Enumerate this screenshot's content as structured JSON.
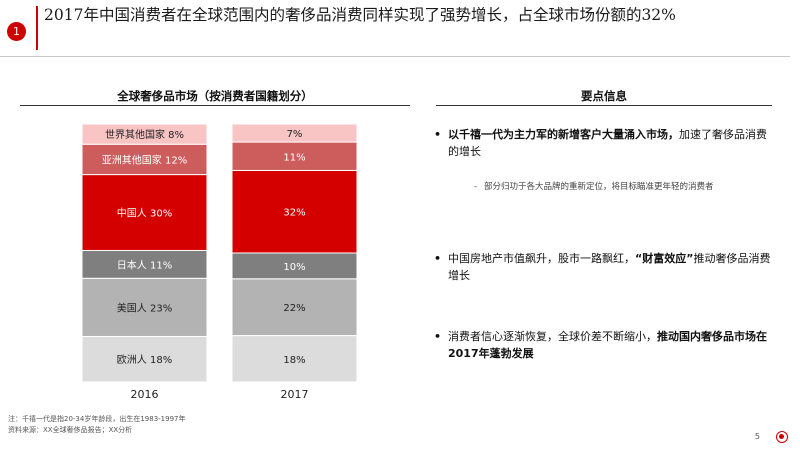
{
  "slide": {
    "badge": "1",
    "title": "2017年中国消费者在全球范围内的奢侈品消费同样实现了强势增长，占全球市场份额的32%",
    "page_number": "5"
  },
  "left_panel": {
    "heading": "全球奢侈品市场（按消费者国籍划分）"
  },
  "right_panel": {
    "heading": "要点信息",
    "points": [
      {
        "bullet": "•",
        "bold": "以千禧一代为主力军的新增客户大量涌入市场，",
        "normal": "加速了奢侈品消费的增长"
      },
      {
        "bullet": "-",
        "normal": "部分归功于各大品牌的重新定位，将目标瞄准更年轻的消费者"
      },
      {
        "bullet": "•",
        "normal_before": "中国房地产市值飙升，股市一路飘红，",
        "bold": "“财富效应”",
        "normal": "推动奢侈品消费增长"
      },
      {
        "bullet": "•",
        "normal_before": "消费者信心逐渐恢复，全球价差不断缩小，",
        "bold": "推动国内奢侈品市场在2017年蓬勃发展"
      }
    ]
  },
  "notes": {
    "note": "注：千禧一代是指20-34岁年龄段，出生在1983-1997年",
    "source": "资料来源：XX全球奢侈品报告；XX分析"
  },
  "chart_data": {
    "type": "bar",
    "stacked": true,
    "percent": true,
    "categories": [
      "2016",
      "2017"
    ],
    "series": [
      {
        "name": "欧洲人",
        "values": [
          18,
          18
        ],
        "color": "#dcdcdc"
      },
      {
        "name": "美国人",
        "values": [
          23,
          22
        ],
        "color": "#b3b3b3"
      },
      {
        "name": "日本人",
        "values": [
          11,
          10
        ],
        "color": "#7f7f7f"
      },
      {
        "name": "中国人",
        "values": [
          30,
          32
        ],
        "color": "#d40000"
      },
      {
        "name": "亚洲其他国家",
        "values": [
          12,
          11
        ],
        "color": "#cd5c5c"
      },
      {
        "name": "世界其他国家",
        "values": [
          8,
          7
        ],
        "color": "#f8c4c4"
      }
    ],
    "labels_2016": [
      "欧洲人 18%",
      "美国人 23%",
      "日本人 11%",
      "中国人 30%",
      "亚洲其他国家 12%",
      "世界其他国家 8%"
    ],
    "labels_2017": [
      "18%",
      "22%",
      "10%",
      "32%",
      "11%",
      "7%"
    ],
    "ylim": [
      0,
      100
    ]
  }
}
